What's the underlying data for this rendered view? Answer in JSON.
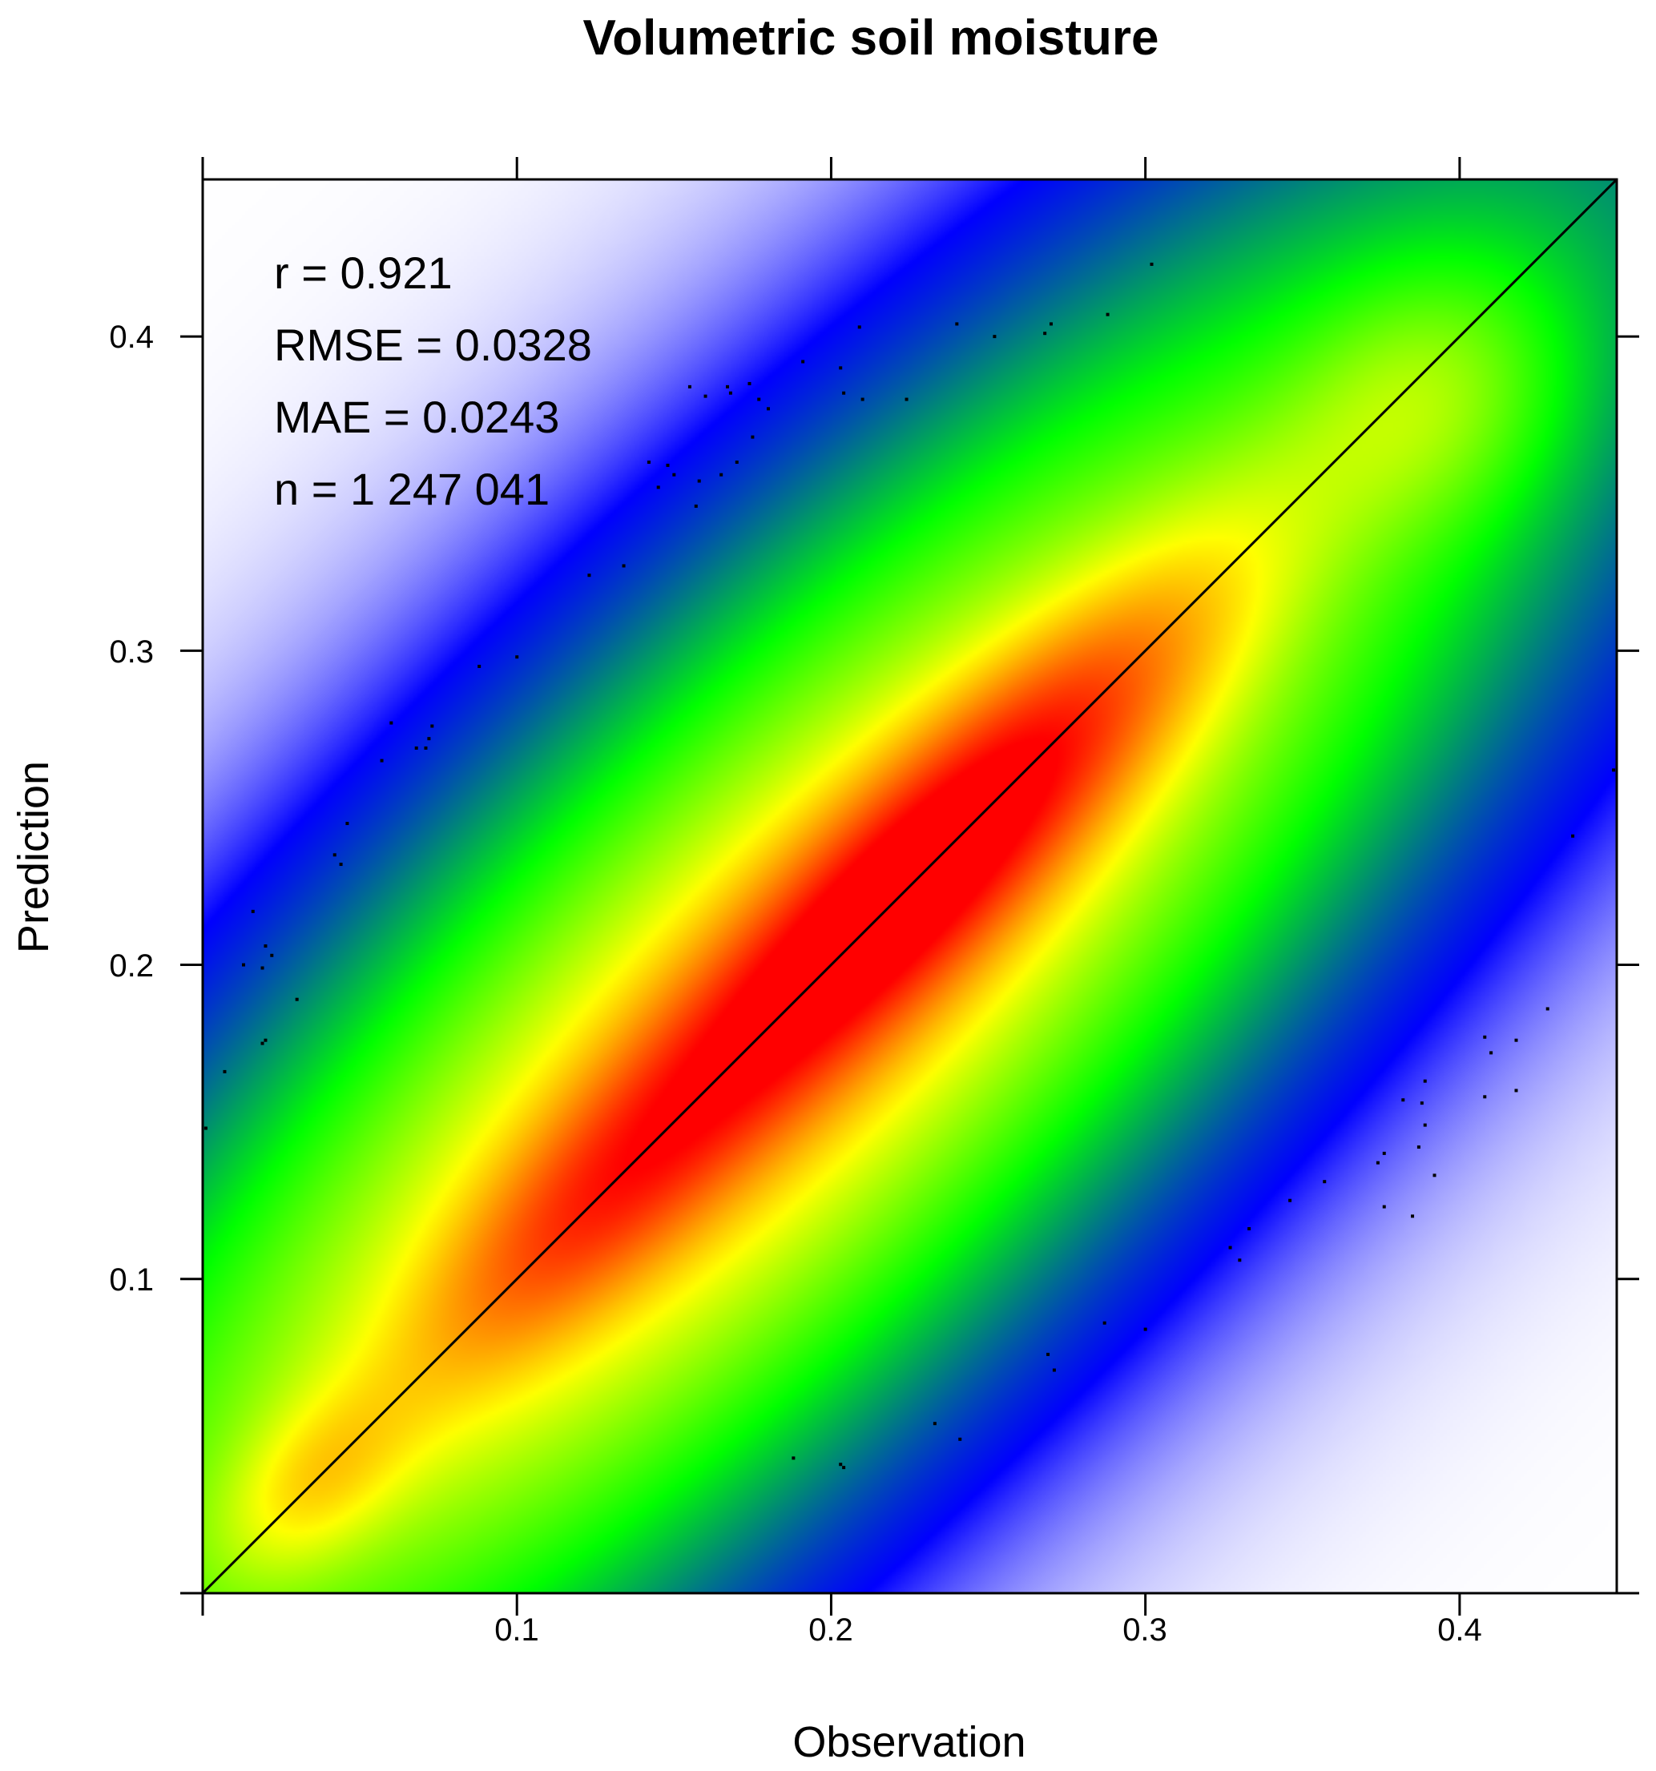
{
  "chart_data": {
    "type": "heatmap",
    "title": "Volumetric soil moisture",
    "xlabel": "Observation",
    "ylabel": "Prediction",
    "xlim": [
      0,
      0.45
    ],
    "ylim": [
      0,
      0.45
    ],
    "xticks": [
      "0.1",
      "0.2",
      "0.3",
      "0.4"
    ],
    "yticks": [
      "0.1",
      "0.2",
      "0.3",
      "0.4"
    ],
    "tick_values": [
      0.1,
      0.2,
      0.3,
      0.4
    ],
    "reference_line": "1:1",
    "stats": {
      "r": "r = 0.921",
      "rmse": "RMSE = 0.0328",
      "mae": "MAE = 0.0243",
      "n": "n = 1 247 041"
    },
    "colormap": [
      "#ffffff",
      "#0000ff",
      "#00ff00",
      "#ffff00",
      "#ff0000"
    ],
    "density_components": [
      {
        "x": 0.18,
        "y": 0.18,
        "sd_major": 0.2,
        "sd_minor": 0.06,
        "w": 1.0
      },
      {
        "x": 0.23,
        "y": 0.23,
        "sd_major": 0.085,
        "sd_minor": 0.02,
        "w": 0.9
      },
      {
        "x": 0.12,
        "y": 0.12,
        "sd_major": 0.05,
        "sd_minor": 0.018,
        "w": 0.35
      },
      {
        "x": 0.035,
        "y": 0.035,
        "sd_major": 0.025,
        "sd_minor": 0.015,
        "w": 0.3
      },
      {
        "x": 0.39,
        "y": 0.38,
        "sd_major": 0.03,
        "sd_minor": 0.025,
        "w": 0.25
      }
    ],
    "outliers": [
      [
        0.302,
        0.423
      ],
      [
        0.288,
        0.407
      ],
      [
        0.27,
        0.404
      ],
      [
        0.268,
        0.401
      ],
      [
        0.252,
        0.4
      ],
      [
        0.24,
        0.404
      ],
      [
        0.209,
        0.403
      ],
      [
        0.191,
        0.392
      ],
      [
        0.203,
        0.39
      ],
      [
        0.204,
        0.382
      ],
      [
        0.21,
        0.38
      ],
      [
        0.224,
        0.38
      ],
      [
        0.155,
        0.384
      ],
      [
        0.16,
        0.381
      ],
      [
        0.167,
        0.384
      ],
      [
        0.168,
        0.382
      ],
      [
        0.174,
        0.385
      ],
      [
        0.177,
        0.38
      ],
      [
        0.18,
        0.377
      ],
      [
        0.175,
        0.368
      ],
      [
        0.17,
        0.36
      ],
      [
        0.165,
        0.356
      ],
      [
        0.158,
        0.354
      ],
      [
        0.157,
        0.346
      ],
      [
        0.142,
        0.36
      ],
      [
        0.148,
        0.359
      ],
      [
        0.15,
        0.356
      ],
      [
        0.145,
        0.352
      ],
      [
        0.123,
        0.324
      ],
      [
        0.134,
        0.327
      ],
      [
        0.1,
        0.298
      ],
      [
        0.088,
        0.295
      ],
      [
        0.06,
        0.277
      ],
      [
        0.073,
        0.276
      ],
      [
        0.072,
        0.272
      ],
      [
        0.068,
        0.269
      ],
      [
        0.071,
        0.269
      ],
      [
        0.057,
        0.265
      ],
      [
        0.046,
        0.245
      ],
      [
        0.042,
        0.235
      ],
      [
        0.044,
        0.232
      ],
      [
        0.016,
        0.217
      ],
      [
        0.02,
        0.206
      ],
      [
        0.022,
        0.203
      ],
      [
        0.019,
        0.199
      ],
      [
        0.013,
        0.2
      ],
      [
        0.03,
        0.189
      ],
      [
        0.02,
        0.176
      ],
      [
        0.019,
        0.175
      ],
      [
        0.007,
        0.166
      ],
      [
        0.001,
        0.148
      ],
      [
        0.449,
        0.262
      ],
      [
        0.436,
        0.241
      ],
      [
        0.428,
        0.186
      ],
      [
        0.418,
        0.176
      ],
      [
        0.408,
        0.177
      ],
      [
        0.41,
        0.172
      ],
      [
        0.418,
        0.16
      ],
      [
        0.408,
        0.158
      ],
      [
        0.389,
        0.163
      ],
      [
        0.382,
        0.157
      ],
      [
        0.388,
        0.156
      ],
      [
        0.389,
        0.149
      ],
      [
        0.387,
        0.142
      ],
      [
        0.376,
        0.14
      ],
      [
        0.374,
        0.137
      ],
      [
        0.392,
        0.133
      ],
      [
        0.357,
        0.131
      ],
      [
        0.346,
        0.125
      ],
      [
        0.376,
        0.123
      ],
      [
        0.385,
        0.12
      ],
      [
        0.333,
        0.116
      ],
      [
        0.327,
        0.11
      ],
      [
        0.33,
        0.106
      ],
      [
        0.287,
        0.086
      ],
      [
        0.3,
        0.084
      ],
      [
        0.269,
        0.076
      ],
      [
        0.271,
        0.071
      ],
      [
        0.233,
        0.054
      ],
      [
        0.241,
        0.049
      ],
      [
        0.188,
        0.043
      ],
      [
        0.203,
        0.041
      ],
      [
        0.204,
        0.04
      ]
    ]
  }
}
